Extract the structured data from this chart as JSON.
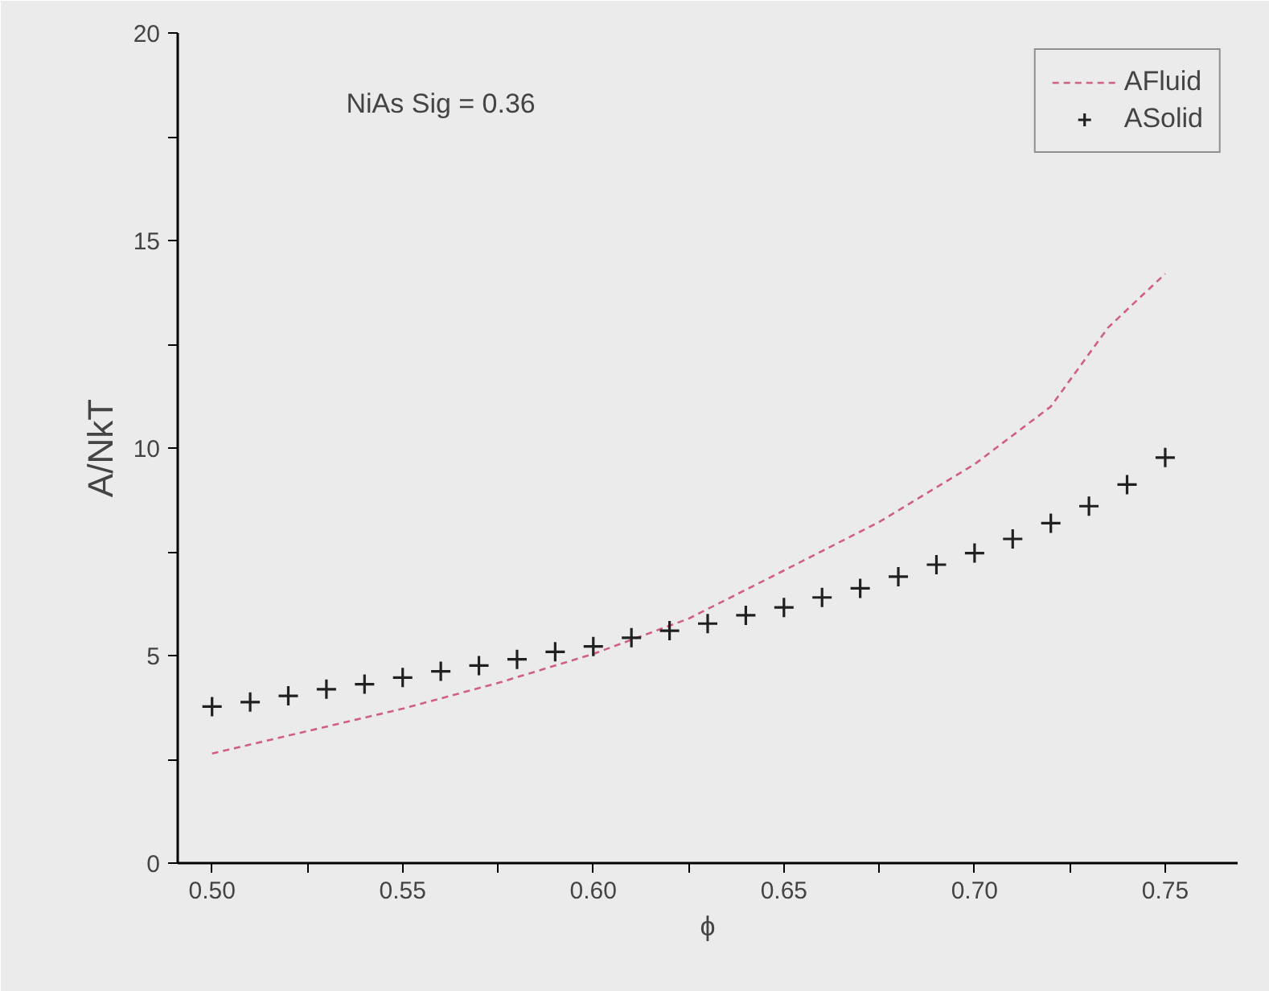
{
  "chart_data": {
    "type": "line",
    "xlabel": "ϕ",
    "ylabel": "A/NkT",
    "annotations": [
      "NiAs Sig = 0.36"
    ],
    "xlim": [
      0.491,
      0.769
    ],
    "ylim": [
      0,
      20
    ],
    "xticks": [
      {
        "value": 0.5,
        "label": "0.50"
      },
      {
        "value": 0.525,
        "label": null
      },
      0.55,
      {
        "value": 0.575,
        "label": null
      },
      {
        "value": 0.6,
        "label": "0.60"
      },
      {
        "value": 0.625,
        "label": null
      },
      0.65,
      {
        "value": 0.675,
        "label": null
      },
      {
        "value": 0.7,
        "label": "0.70"
      },
      {
        "value": 0.725,
        "label": null
      },
      0.75
    ],
    "yticks": [
      0,
      {
        "value": 2.5,
        "label": null
      },
      5,
      {
        "value": 7.5,
        "label": null
      },
      10,
      {
        "value": 12.5,
        "label": null
      },
      15,
      {
        "value": 17.5,
        "label": null
      },
      20
    ],
    "grid": false,
    "legend": "top right",
    "series": [
      {
        "name": "AFluid",
        "line_style": "dashed",
        "color": "#d06080",
        "x": [
          0.5,
          0.525,
          0.55,
          0.575,
          0.6,
          0.625,
          0.65,
          0.675,
          0.7,
          0.72,
          0.735,
          0.75
        ],
        "values": [
          2.64,
          3.18,
          3.72,
          4.34,
          5.04,
          5.89,
          7.05,
          8.22,
          9.61,
          11.0,
          12.9,
          14.2
        ]
      },
      {
        "name": "ASolid",
        "type": "scatter",
        "marker": "cross",
        "color": "#202020",
        "x": [
          0.5,
          0.51,
          0.52,
          0.53,
          0.54,
          0.55,
          0.56,
          0.57,
          0.58,
          0.59,
          0.6,
          0.61,
          0.62,
          0.63,
          0.64,
          0.65,
          0.66,
          0.67,
          0.68,
          0.69,
          0.7,
          0.71,
          0.72,
          0.73,
          0.74,
          0.75
        ],
        "values": [
          3.77,
          3.88,
          4.03,
          4.19,
          4.31,
          4.47,
          4.62,
          4.76,
          4.91,
          5.09,
          5.22,
          5.43,
          5.6,
          5.77,
          5.97,
          6.16,
          6.4,
          6.62,
          6.9,
          7.19,
          7.47,
          7.81,
          8.19,
          8.6,
          9.12,
          9.77
        ]
      }
    ]
  }
}
